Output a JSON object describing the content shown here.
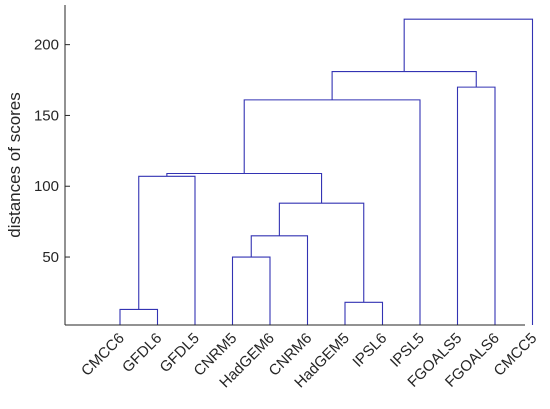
{
  "chart_data": {
    "type": "dendrogram",
    "ylabel": "distances of scores",
    "xlabel": "",
    "title": "",
    "ylim": [
      2,
      228
    ],
    "yticks": [
      50,
      100,
      150,
      200
    ],
    "grid": false,
    "line_color": "#3333b3",
    "leaves": [
      "CMCC6",
      "GFDL6",
      "GFDL5",
      "CNRM5",
      "HadGEM6",
      "CNRM6",
      "HadGEM5",
      "IPSL6",
      "IPSL5",
      "FGOALS5",
      "FGOALS6",
      "CMCC5"
    ],
    "merges": [
      {
        "left": "CMCC6",
        "right": "GFDL6",
        "height": 13
      },
      {
        "left": "CMCC6|GFDL6",
        "right": "GFDL5",
        "height": 107
      },
      {
        "left": "CNRM5",
        "right": "HadGEM6",
        "height": 50
      },
      {
        "left": "CNRM5|HadGEM6",
        "right": "CNRM6",
        "height": 65
      },
      {
        "left": "HadGEM5",
        "right": "IPSL6",
        "height": 18
      },
      {
        "left": "CNRM5|HadGEM6|CNRM6",
        "right": "HadGEM5|IPSL6",
        "height": 88
      },
      {
        "left": "CMCC6|GFDL6|GFDL5",
        "right": "CNRM5|HadGEM6|CNRM6|HadGEM5|IPSL6",
        "height": 109
      },
      {
        "left": "CMCC6..IPSL6",
        "right": "IPSL5",
        "height": 161
      },
      {
        "left": "FGOALS5",
        "right": "FGOALS6",
        "height": 170
      },
      {
        "left": "CMCC6..IPSL5",
        "right": "FGOALS5|FGOALS6",
        "height": 181
      },
      {
        "left": "CMCC6..FGOALS6",
        "right": "CMCC5",
        "height": 218
      }
    ]
  }
}
